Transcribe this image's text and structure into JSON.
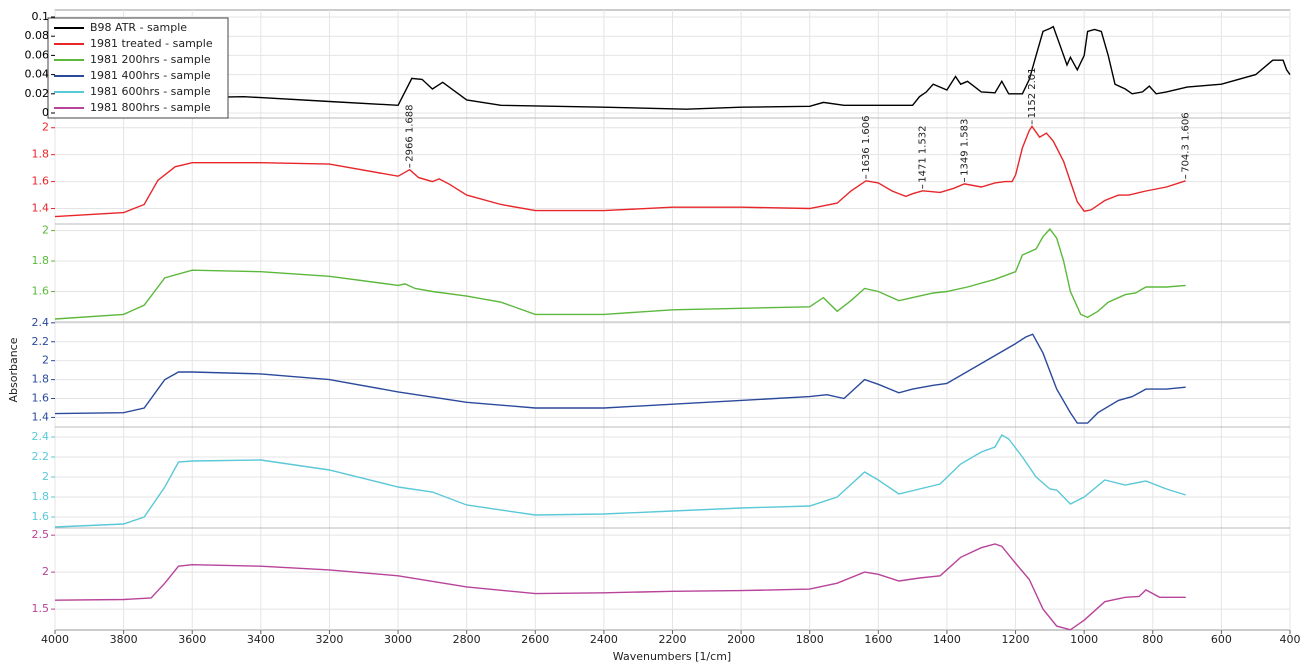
{
  "chart_data": {
    "type": "line",
    "xlabel": "Wavenumbers [1/cm]",
    "ylabel": "Absorbance",
    "xlim": [
      4000,
      400
    ],
    "xticks": [
      4000,
      3800,
      3600,
      3400,
      3200,
      3000,
      2800,
      2600,
      2400,
      2200,
      2000,
      1800,
      1600,
      1400,
      1200,
      1000,
      800,
      600,
      400
    ],
    "grid": true,
    "legend": "upper left",
    "series": [
      {
        "name": "B98 ATR - sample",
        "color": "#000000",
        "ylim": [
          0,
          0.1
        ],
        "yticks": [
          0,
          0.02,
          0.04,
          0.06,
          0.08,
          0.1
        ],
        "x": [
          4000,
          3800,
          3600,
          3450,
          3400,
          3200,
          3000,
          2960,
          2930,
          2900,
          2870,
          2800,
          2700,
          2400,
          2160,
          2000,
          1800,
          1760,
          1700,
          1500,
          1480,
          1460,
          1440,
          1420,
          1400,
          1375,
          1360,
          1340,
          1300,
          1260,
          1240,
          1220,
          1180,
          1160,
          1140,
          1120,
          1100,
          1090,
          1070,
          1050,
          1040,
          1020,
          1000,
          990,
          970,
          950,
          930,
          910,
          880,
          860,
          830,
          810,
          790,
          760,
          700,
          600,
          500,
          450,
          420,
          410,
          400
        ],
        "values": [
          0.012,
          0.013,
          0.016,
          0.017,
          0.016,
          0.012,
          0.008,
          0.036,
          0.035,
          0.025,
          0.032,
          0.0135,
          0.008,
          0.006,
          0.004,
          0.006,
          0.007,
          0.011,
          0.008,
          0.008,
          0.017,
          0.022,
          0.03,
          0.027,
          0.024,
          0.038,
          0.03,
          0.033,
          0.022,
          0.021,
          0.033,
          0.02,
          0.02,
          0.035,
          0.06,
          0.085,
          0.088,
          0.09,
          0.07,
          0.05,
          0.058,
          0.045,
          0.06,
          0.085,
          0.087,
          0.085,
          0.06,
          0.03,
          0.025,
          0.02,
          0.022,
          0.028,
          0.02,
          0.022,
          0.027,
          0.03,
          0.04,
          0.055,
          0.055,
          0.045,
          0.04
        ]
      },
      {
        "name": "1981 treated - sample",
        "color": "#e8262a",
        "ylim": [
          1.3,
          2.05
        ],
        "yticks": [
          1.4,
          1.6,
          1.8,
          2
        ],
        "x": [
          4000,
          3800,
          3740,
          3700,
          3650,
          3600,
          3400,
          3200,
          3000,
          2966,
          2940,
          2900,
          2880,
          2850,
          2800,
          2700,
          2600,
          2400,
          2200,
          2000,
          1800,
          1720,
          1680,
          1636,
          1600,
          1560,
          1520,
          1500,
          1471,
          1420,
          1380,
          1349,
          1300,
          1260,
          1230,
          1210,
          1200,
          1180,
          1160,
          1152,
          1130,
          1110,
          1090,
          1060,
          1040,
          1020,
          1000,
          980,
          940,
          900,
          870,
          820,
          760,
          704.3
        ],
        "values": [
          1.34,
          1.37,
          1.43,
          1.61,
          1.71,
          1.74,
          1.74,
          1.73,
          1.64,
          1.688,
          1.63,
          1.6,
          1.62,
          1.58,
          1.5,
          1.43,
          1.385,
          1.385,
          1.41,
          1.41,
          1.4,
          1.44,
          1.53,
          1.606,
          1.59,
          1.53,
          1.49,
          1.51,
          1.532,
          1.52,
          1.55,
          1.583,
          1.56,
          1.59,
          1.6,
          1.6,
          1.65,
          1.85,
          1.98,
          2.01,
          1.93,
          1.96,
          1.9,
          1.75,
          1.6,
          1.45,
          1.38,
          1.39,
          1.46,
          1.5,
          1.5,
          1.53,
          1.56,
          1.606
        ],
        "annotations": [
          {
            "x": 2966,
            "y": 1.688,
            "label": "2966  1.688"
          },
          {
            "x": 1636,
            "y": 1.606,
            "label": "1636  1.606"
          },
          {
            "x": 1471,
            "y": 1.532,
            "label": "1471  1.532"
          },
          {
            "x": 1349,
            "y": 1.583,
            "label": "1349  1.583"
          },
          {
            "x": 1152,
            "y": 2.01,
            "label": "1152  2.01"
          },
          {
            "x": 704.3,
            "y": 1.606,
            "label": "704.3  1.606"
          }
        ]
      },
      {
        "name": "1981 200hrs - sample",
        "color": "#5cb83c",
        "ylim": [
          1.4,
          2.03
        ],
        "yticks": [
          1.6,
          1.8,
          2
        ],
        "x": [
          4000,
          3800,
          3740,
          3680,
          3600,
          3400,
          3200,
          3000,
          2980,
          2950,
          2900,
          2800,
          2700,
          2600,
          2400,
          2200,
          2000,
          1800,
          1760,
          1720,
          1680,
          1640,
          1600,
          1540,
          1500,
          1440,
          1400,
          1340,
          1260,
          1200,
          1180,
          1140,
          1120,
          1100,
          1080,
          1060,
          1040,
          1010,
          990,
          960,
          930,
          880,
          850,
          820,
          760,
          704
        ],
        "values": [
          1.42,
          1.45,
          1.51,
          1.69,
          1.74,
          1.73,
          1.7,
          1.64,
          1.65,
          1.62,
          1.6,
          1.57,
          1.53,
          1.45,
          1.45,
          1.48,
          1.49,
          1.5,
          1.56,
          1.47,
          1.54,
          1.62,
          1.6,
          1.54,
          1.56,
          1.59,
          1.6,
          1.63,
          1.68,
          1.73,
          1.84,
          1.88,
          1.96,
          2.01,
          1.95,
          1.8,
          1.6,
          1.45,
          1.43,
          1.47,
          1.53,
          1.58,
          1.59,
          1.63,
          1.63,
          1.64
        ]
      },
      {
        "name": "1981 400hrs - sample",
        "color": "#2b4a9c",
        "ylim": [
          1.32,
          2.43
        ],
        "yticks": [
          1.4,
          1.6,
          1.8,
          2,
          2.2,
          2.4
        ],
        "x": [
          4000,
          3800,
          3740,
          3680,
          3640,
          3600,
          3400,
          3200,
          3000,
          2800,
          2600,
          2400,
          2200,
          2000,
          1800,
          1750,
          1700,
          1640,
          1600,
          1540,
          1500,
          1440,
          1400,
          1300,
          1200,
          1170,
          1150,
          1120,
          1080,
          1040,
          1020,
          990,
          960,
          900,
          860,
          820,
          760,
          704
        ],
        "values": [
          1.44,
          1.45,
          1.5,
          1.8,
          1.88,
          1.88,
          1.86,
          1.8,
          1.67,
          1.56,
          1.5,
          1.5,
          1.54,
          1.58,
          1.62,
          1.64,
          1.6,
          1.8,
          1.75,
          1.66,
          1.7,
          1.74,
          1.76,
          1.97,
          2.18,
          2.25,
          2.28,
          2.08,
          1.7,
          1.45,
          1.34,
          1.34,
          1.45,
          1.58,
          1.62,
          1.7,
          1.7,
          1.72
        ]
      },
      {
        "name": "1981 600hrs - sample",
        "color": "#5bc8d8",
        "ylim": [
          1.5,
          2.47
        ],
        "yticks": [
          1.6,
          1.8,
          2,
          2.2,
          2.4
        ],
        "x": [
          4000,
          3800,
          3740,
          3680,
          3640,
          3600,
          3400,
          3200,
          3000,
          2900,
          2800,
          2600,
          2400,
          2200,
          2000,
          1800,
          1720,
          1640,
          1600,
          1540,
          1480,
          1420,
          1360,
          1300,
          1260,
          1240,
          1220,
          1180,
          1140,
          1100,
          1080,
          1040,
          1000,
          940,
          880,
          820,
          760,
          704
        ],
        "values": [
          1.5,
          1.53,
          1.6,
          1.9,
          2.15,
          2.16,
          2.17,
          2.07,
          1.9,
          1.85,
          1.72,
          1.62,
          1.63,
          1.66,
          1.69,
          1.71,
          1.8,
          2.05,
          1.97,
          1.83,
          1.88,
          1.93,
          2.13,
          2.25,
          2.3,
          2.42,
          2.38,
          2.2,
          2,
          1.88,
          1.87,
          1.73,
          1.8,
          1.97,
          1.92,
          1.96,
          1.88,
          1.82
        ]
      },
      {
        "name": "1981 800hrs - sample",
        "color": "#b8439a",
        "ylim": [
          1.19,
          2.57
        ],
        "yticks": [
          1.5,
          2,
          2.5
        ],
        "x": [
          4000,
          3800,
          3720,
          3680,
          3640,
          3600,
          3400,
          3200,
          3000,
          2800,
          2600,
          2400,
          2200,
          2000,
          1800,
          1720,
          1640,
          1600,
          1540,
          1480,
          1420,
          1360,
          1300,
          1260,
          1240,
          1200,
          1160,
          1120,
          1080,
          1040,
          1000,
          940,
          880,
          840,
          820,
          780,
          704
        ],
        "values": [
          1.62,
          1.63,
          1.65,
          1.85,
          2.08,
          2.1,
          2.08,
          2.03,
          1.95,
          1.8,
          1.71,
          1.72,
          1.74,
          1.75,
          1.77,
          1.85,
          2,
          1.97,
          1.88,
          1.92,
          1.95,
          2.2,
          2.33,
          2.38,
          2.35,
          2.12,
          1.9,
          1.5,
          1.27,
          1.22,
          1.35,
          1.6,
          1.66,
          1.67,
          1.76,
          1.66,
          1.66
        ]
      }
    ]
  }
}
